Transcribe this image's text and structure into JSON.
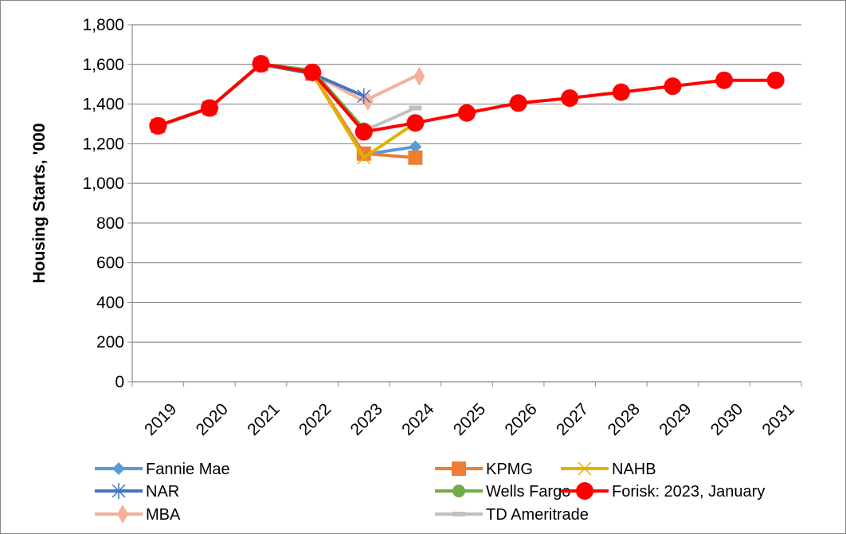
{
  "chart_data": {
    "type": "line",
    "title": "",
    "xlabel": "",
    "ylabel": "Housing Starts, '000",
    "ylim": [
      0,
      1800
    ],
    "yticks": [
      "0",
      "200",
      "400",
      "600",
      "800",
      "1,000",
      "1,200",
      "1,400",
      "1,600",
      "1,800"
    ],
    "categories": [
      "2019",
      "2020",
      "2021",
      "2022",
      "2023",
      "2024",
      "2025",
      "2026",
      "2027",
      "2028",
      "2029",
      "2030",
      "2031"
    ],
    "grid": "horizontal",
    "legend_position": "bottom",
    "series": [
      {
        "name": "Fannie Mae",
        "color": "#5b9bd5",
        "marker": "diamond",
        "values": [
          1290,
          1380,
          1601,
          1553,
          1145,
          1185,
          null,
          null,
          null,
          null,
          null,
          null,
          null
        ]
      },
      {
        "name": "KPMG",
        "color": "#ed7d31",
        "marker": "square",
        "values": [
          1290,
          1380,
          1601,
          1553,
          1150,
          1130,
          null,
          null,
          null,
          null,
          null,
          null,
          null
        ]
      },
      {
        "name": "NAHB",
        "color": "#e4b000",
        "marker": "x",
        "values": [
          1290,
          1380,
          1601,
          1553,
          1130,
          1305,
          null,
          null,
          null,
          null,
          null,
          null,
          null
        ]
      },
      {
        "name": "NAR",
        "color": "#4472c4",
        "marker": "star",
        "values": [
          1290,
          1380,
          1601,
          1553,
          1440,
          null,
          null,
          null,
          null,
          null,
          null,
          null,
          null
        ]
      },
      {
        "name": "Wells Fargo",
        "color": "#70ad47",
        "marker": "circle",
        "values": [
          1290,
          1380,
          1601,
          1570,
          1275,
          null,
          null,
          null,
          null,
          null,
          null,
          null,
          null
        ]
      },
      {
        "name": "Forisk: 2023, January",
        "color": "#ff0000",
        "marker": "bigcircle",
        "values": [
          1290,
          1380,
          1603,
          1560,
          1260,
          1305,
          1355,
          1405,
          1430,
          1460,
          1490,
          1520,
          1520
        ]
      },
      {
        "name": "MBA",
        "color": "#f4b099",
        "marker": "bigdiamond",
        "values": [
          1290,
          1380,
          1601,
          1553,
          1415,
          1540,
          null,
          null,
          null,
          null,
          null,
          null,
          null
        ]
      },
      {
        "name": "TD Ameritrade",
        "color": "#c0c0c0",
        "marker": "dash",
        "values": [
          1290,
          1380,
          1601,
          1553,
          1265,
          1380,
          null,
          null,
          null,
          null,
          null,
          null,
          null
        ]
      }
    ]
  }
}
